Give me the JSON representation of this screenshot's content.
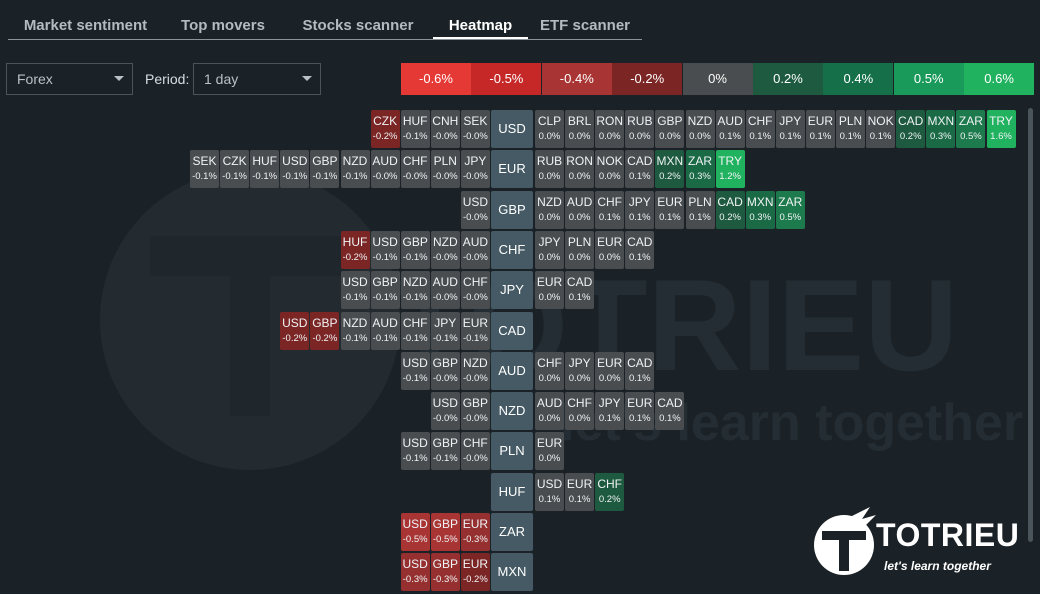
{
  "tabs": [
    {
      "label": "Market sentiment",
      "active": false
    },
    {
      "label": "Top movers",
      "active": false
    },
    {
      "label": "Stocks scanner",
      "active": false
    },
    {
      "label": "Heatmap",
      "active": true
    },
    {
      "label": "ETF scanner",
      "active": false
    }
  ],
  "controls": {
    "market_value": "Forex",
    "period_label": "Period:",
    "period_value": "1 day"
  },
  "legend": [
    {
      "label": "-0.6%",
      "color": "#e53935"
    },
    {
      "label": "-0.5%",
      "color": "#c62828"
    },
    {
      "label": "-0.4%",
      "color": "#a83434"
    },
    {
      "label": "-0.2%",
      "color": "#7b2525"
    },
    {
      "label": "0%",
      "color": "#4a4d4f"
    },
    {
      "label": "0.2%",
      "color": "#1d5a3f"
    },
    {
      "label": "0.4%",
      "color": "#15704a"
    },
    {
      "label": "0.5%",
      "color": "#1a9a5a"
    },
    {
      "label": "0.6%",
      "color": "#21b25f"
    }
  ],
  "rows": [
    {
      "base": "USD",
      "left": [
        [
          "CZK",
          "-0.2%"
        ],
        [
          "HUF",
          "-0.1%"
        ],
        [
          "CNH",
          "-0.0%"
        ],
        [
          "SEK",
          "-0.0%"
        ]
      ],
      "right": [
        [
          "CLP",
          "0.0%"
        ],
        [
          "BRL",
          "0.0%"
        ],
        [
          "RON",
          "0.0%"
        ],
        [
          "RUB",
          "0.0%"
        ],
        [
          "GBP",
          "0.0%"
        ],
        [
          "NZD",
          "0.0%"
        ],
        [
          "AUD",
          "0.1%"
        ],
        [
          "CHF",
          "0.1%"
        ],
        [
          "JPY",
          "0.1%"
        ],
        [
          "EUR",
          "0.1%"
        ],
        [
          "PLN",
          "0.1%"
        ],
        [
          "NOK",
          "0.1%"
        ],
        [
          "CAD",
          "0.2%"
        ],
        [
          "MXN",
          "0.3%"
        ],
        [
          "ZAR",
          "0.5%"
        ],
        [
          "TRY",
          "1.6%"
        ]
      ]
    },
    {
      "base": "EUR",
      "left": [
        [
          "SEK",
          "-0.1%"
        ],
        [
          "CZK",
          "-0.1%"
        ],
        [
          "HUF",
          "-0.1%"
        ],
        [
          "USD",
          "-0.1%"
        ],
        [
          "GBP",
          "-0.1%"
        ],
        [
          "NZD",
          "-0.1%"
        ],
        [
          "AUD",
          "-0.0%"
        ],
        [
          "CHF",
          "-0.0%"
        ],
        [
          "PLN",
          "-0.0%"
        ],
        [
          "JPY",
          "-0.0%"
        ]
      ],
      "right": [
        [
          "RUB",
          "0.0%"
        ],
        [
          "RON",
          "0.0%"
        ],
        [
          "NOK",
          "0.0%"
        ],
        [
          "CAD",
          "0.1%"
        ],
        [
          "MXN",
          "0.2%"
        ],
        [
          "ZAR",
          "0.3%"
        ],
        [
          "TRY",
          "1.2%"
        ]
      ]
    },
    {
      "base": "GBP",
      "left": [
        [
          "USD",
          "-0.0%"
        ]
      ],
      "right": [
        [
          "NZD",
          "0.0%"
        ],
        [
          "AUD",
          "0.0%"
        ],
        [
          "CHF",
          "0.1%"
        ],
        [
          "JPY",
          "0.1%"
        ],
        [
          "EUR",
          "0.1%"
        ],
        [
          "PLN",
          "0.1%"
        ],
        [
          "CAD",
          "0.2%"
        ],
        [
          "MXN",
          "0.3%"
        ],
        [
          "ZAR",
          "0.5%"
        ]
      ]
    },
    {
      "base": "CHF",
      "left": [
        [
          "HUF",
          "-0.2%"
        ],
        [
          "USD",
          "-0.1%"
        ],
        [
          "GBP",
          "-0.1%"
        ],
        [
          "NZD",
          "-0.0%"
        ],
        [
          "AUD",
          "-0.0%"
        ]
      ],
      "right": [
        [
          "JPY",
          "0.0%"
        ],
        [
          "PLN",
          "0.0%"
        ],
        [
          "EUR",
          "0.0%"
        ],
        [
          "CAD",
          "0.1%"
        ]
      ]
    },
    {
      "base": "JPY",
      "left": [
        [
          "USD",
          "-0.1%"
        ],
        [
          "GBP",
          "-0.1%"
        ],
        [
          "NZD",
          "-0.1%"
        ],
        [
          "AUD",
          "-0.0%"
        ],
        [
          "CHF",
          "-0.0%"
        ]
      ],
      "right": [
        [
          "EUR",
          "0.0%"
        ],
        [
          "CAD",
          "0.1%"
        ]
      ]
    },
    {
      "base": "CAD",
      "left": [
        [
          "USD",
          "-0.2%"
        ],
        [
          "GBP",
          "-0.2%"
        ],
        [
          "NZD",
          "-0.1%"
        ],
        [
          "AUD",
          "-0.1%"
        ],
        [
          "CHF",
          "-0.1%"
        ],
        [
          "JPY",
          "-0.1%"
        ],
        [
          "EUR",
          "-0.1%"
        ]
      ],
      "right": []
    },
    {
      "base": "AUD",
      "left": [
        [
          "USD",
          "-0.1%"
        ],
        [
          "GBP",
          "-0.0%"
        ],
        [
          "NZD",
          "-0.0%"
        ]
      ],
      "right": [
        [
          "CHF",
          "0.0%"
        ],
        [
          "JPY",
          "0.0%"
        ],
        [
          "EUR",
          "0.0%"
        ],
        [
          "CAD",
          "0.1%"
        ]
      ]
    },
    {
      "base": "NZD",
      "left": [
        [
          "USD",
          "-0.0%"
        ],
        [
          "GBP",
          "-0.0%"
        ]
      ],
      "right": [
        [
          "AUD",
          "0.0%"
        ],
        [
          "CHF",
          "0.0%"
        ],
        [
          "JPY",
          "0.1%"
        ],
        [
          "EUR",
          "0.1%"
        ],
        [
          "CAD",
          "0.1%"
        ]
      ]
    },
    {
      "base": "PLN",
      "left": [
        [
          "USD",
          "-0.1%"
        ],
        [
          "GBP",
          "-0.1%"
        ],
        [
          "CHF",
          "-0.0%"
        ]
      ],
      "right": [
        [
          "EUR",
          "0.0%"
        ]
      ]
    },
    {
      "base": "HUF",
      "left": [],
      "right": [
        [
          "USD",
          "0.1%"
        ],
        [
          "EUR",
          "0.1%"
        ],
        [
          "CHF",
          "0.2%"
        ]
      ]
    },
    {
      "base": "ZAR",
      "left": [
        [
          "USD",
          "-0.5%"
        ],
        [
          "GBP",
          "-0.5%"
        ],
        [
          "EUR",
          "-0.3%"
        ]
      ],
      "right": []
    },
    {
      "base": "MXN",
      "left": [
        [
          "USD",
          "-0.3%"
        ],
        [
          "GBP",
          "-0.3%"
        ],
        [
          "EUR",
          "-0.2%"
        ]
      ],
      "right": []
    }
  ],
  "watermark": {
    "big": "TOTRIEU",
    "small": "let's learn together"
  },
  "logo": {
    "brand": "TOTRIEU",
    "tagline": "let's learn together"
  }
}
